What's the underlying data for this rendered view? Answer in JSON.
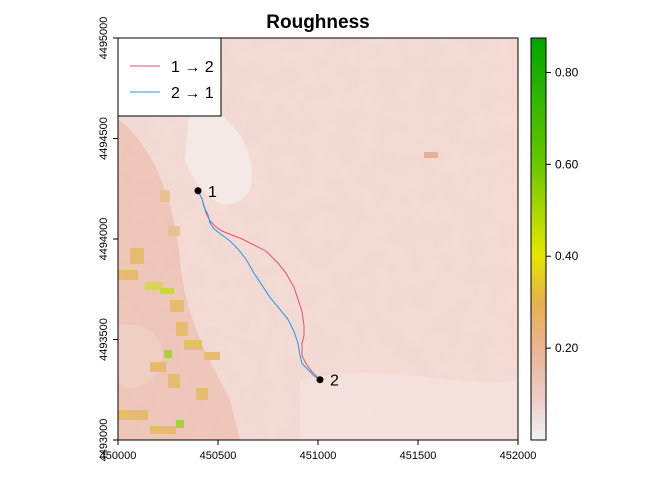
{
  "chart_data": {
    "type": "heatmap",
    "title": "Roughness",
    "xlabel": "",
    "ylabel": "",
    "xlim": [
      450000,
      452000
    ],
    "ylim": [
      4493000,
      4495000
    ],
    "x_ticks": [
      450000,
      450500,
      451000,
      451500,
      452000
    ],
    "x_tick_labels": [
      "450000",
      "450500",
      "451000",
      "451500",
      "452000"
    ],
    "y_ticks": [
      4493000,
      4493500,
      4494000,
      4494500,
      4495000
    ],
    "y_tick_labels": [
      "4493000",
      "4493500",
      "4494000",
      "4494500",
      "4495000"
    ],
    "colorbar": {
      "range": [
        0,
        0.875
      ],
      "ticks": [
        0.2,
        0.4,
        0.6,
        0.8
      ],
      "tick_labels": [
        "0.20",
        "0.40",
        "0.60",
        "0.80"
      ],
      "colors": [
        "#f2f2f2",
        "#eec0b0",
        "#e8b060",
        "#e6e600",
        "#63c600",
        "#00a600"
      ]
    },
    "legend": {
      "placement": "top-left",
      "entries": [
        {
          "label": "1 → 2",
          "color": "#df536b"
        },
        {
          "label": "2 → 1",
          "color": "#2297e6"
        }
      ]
    },
    "points": [
      {
        "label": "1",
        "x": 450400,
        "y": 4494240
      },
      {
        "label": "2",
        "x": 451010,
        "y": 4493300
      }
    ],
    "series": [
      {
        "name": "1 → 2",
        "color": "#df536b",
        "x": [
          450400,
          450420,
          450440,
          450460,
          450490,
          450520,
          450570,
          450620,
          450680,
          450740,
          450800,
          450840,
          450880,
          450900,
          450920,
          450930,
          450930,
          450920,
          450920,
          450940,
          450970,
          451010
        ],
        "y": [
          4494240,
          4494200,
          4494130,
          4494090,
          4494060,
          4494040,
          4494020,
          4494000,
          4493970,
          4493940,
          4493880,
          4493830,
          4493760,
          4493700,
          4493640,
          4493570,
          4493520,
          4493480,
          4493420,
          4493380,
          4493340,
          4493300
        ]
      },
      {
        "name": "2 → 1",
        "color": "#2297e6",
        "x": [
          451010,
          450980,
          450950,
          450920,
          450910,
          450900,
          450880,
          450850,
          450810,
          450760,
          450720,
          450680,
          450640,
          450600,
          450560,
          450520,
          450480,
          450460,
          450450,
          450430,
          450420,
          450410,
          450400
        ],
        "y": [
          4493300,
          4493320,
          4493350,
          4493380,
          4493420,
          4493480,
          4493540,
          4493600,
          4493650,
          4493710,
          4493770,
          4493830,
          4493900,
          4493950,
          4493990,
          4494020,
          4494050,
          4494080,
          4494120,
          4494160,
          4494200,
          4494220,
          4494240
        ]
      }
    ],
    "raster_description_regions": [
      {
        "kind": "high",
        "x": [
          450000,
          450350
        ],
        "y": [
          4493250,
          4494050
        ]
      },
      {
        "kind": "mid",
        "x": [
          450000,
          451000
        ],
        "y": [
          4493000,
          4494600
        ]
      }
    ]
  }
}
